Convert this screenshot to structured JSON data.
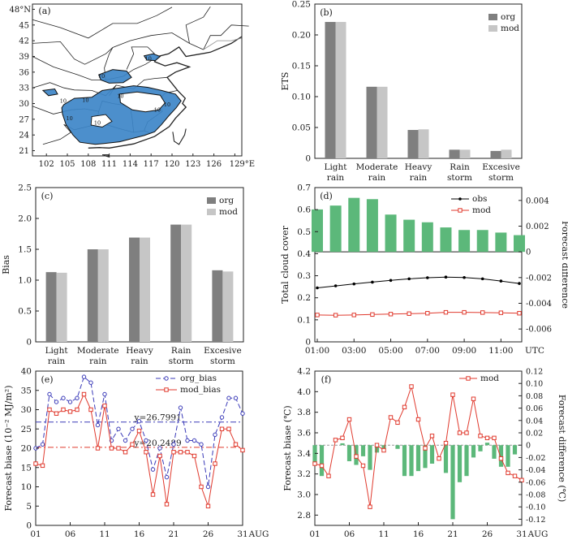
{
  "colors": {
    "org": "#7f7f7f",
    "mod": "#c6c6c6",
    "green": "#5cb87a",
    "obs": "#000000",
    "mod_line": "#e03a2e",
    "org_line": "#3a3ab8",
    "map_fill": "#3d86c8"
  },
  "chart_data": [
    {
      "panel": "(a)",
      "type": "map",
      "xticks": [
        "102",
        "105",
        "108",
        "111",
        "114",
        "117",
        "120",
        "123",
        "126",
        "129°E"
      ],
      "yticks": [
        "21",
        "24",
        "27",
        "30",
        "33",
        "36",
        "39",
        "42",
        "45",
        "48°N"
      ],
      "contour_labels": [
        "10",
        "10",
        "10",
        "10",
        "10",
        "10",
        "10",
        "10",
        "10"
      ]
    },
    {
      "panel": "(b)",
      "type": "bar",
      "ylabel": "ETS",
      "ylim": [
        0,
        0.25
      ],
      "yticks": [
        "0",
        "0.05",
        "0.10",
        "0.15",
        "0.20",
        "0.25"
      ],
      "categories": [
        "Light\nrain",
        "Moderate\nrain",
        "Heavy\nrain",
        "Rain\nstorm",
        "Excesive\nstorm"
      ],
      "series": [
        {
          "name": "org",
          "values": [
            0.221,
            0.116,
            0.046,
            0.014,
            0.012
          ]
        },
        {
          "name": "mod",
          "values": [
            0.221,
            0.116,
            0.047,
            0.014,
            0.014
          ]
        }
      ]
    },
    {
      "panel": "(c)",
      "type": "bar",
      "ylabel": "Bias",
      "ylim": [
        0,
        2.5
      ],
      "yticks": [
        "0",
        "0.5",
        "1.0",
        "1.5",
        "2.0",
        "2.5"
      ],
      "categories": [
        "Light\nrain",
        "Moderate\nrain",
        "Heavy\nrain",
        "Rain\nstorm",
        "Excesive\nstorm"
      ],
      "series": [
        {
          "name": "org",
          "values": [
            1.13,
            1.5,
            1.69,
            1.9,
            1.16
          ]
        },
        {
          "name": "mod",
          "values": [
            1.12,
            1.5,
            1.69,
            1.9,
            1.14
          ]
        }
      ]
    },
    {
      "panel": "(d)",
      "type": "line+bar",
      "ylabel_left": "Total cloud cover",
      "ylabel_right": "Forecast difference",
      "ylim_left": [
        0,
        0.7
      ],
      "yticks_left": [
        "0",
        "0.1",
        "0.2",
        "0.3",
        "0.4",
        "0.5",
        "0.6",
        "0.7"
      ],
      "ylim_right": [
        -0.007,
        0.005
      ],
      "yticks_right": [
        "-0.006",
        "-0.004",
        "-0.002",
        "0",
        "0.002",
        "0.004"
      ],
      "xtick_labels": [
        "01:00",
        "03:00",
        "05:00",
        "07:00",
        "09:00",
        "11:00",
        "UTC"
      ],
      "x": [
        1,
        2,
        3,
        4,
        5,
        6,
        7,
        8,
        9,
        10,
        11,
        12
      ],
      "series": [
        {
          "name": "obs",
          "values": [
            0.245,
            0.254,
            0.263,
            0.271,
            0.279,
            0.286,
            0.291,
            0.294,
            0.292,
            0.286,
            0.276,
            0.265
          ]
        },
        {
          "name": "mod",
          "values": [
            0.122,
            0.121,
            0.122,
            0.124,
            0.126,
            0.128,
            0.13,
            0.134,
            0.134,
            0.133,
            0.132,
            0.13
          ]
        }
      ],
      "bars": {
        "name": "difference",
        "values": [
          0.0033,
          0.0036,
          0.0042,
          0.0041,
          0.0029,
          0.0025,
          0.0023,
          0.0019,
          0.0017,
          0.0017,
          0.0015,
          0.0013
        ]
      }
    },
    {
      "panel": "(e)",
      "type": "line",
      "ylabel": "Forecast biase (10⁻² MJ/m²)",
      "ylim": [
        0,
        40
      ],
      "yticks": [
        "0",
        "5",
        "10",
        "15",
        "20",
        "25",
        "30",
        "35",
        "40"
      ],
      "xtick_labels": [
        "01",
        "06",
        "11",
        "16",
        "21",
        "26",
        "31",
        "AUG"
      ],
      "x": [
        1,
        2,
        3,
        4,
        5,
        6,
        7,
        8,
        9,
        10,
        11,
        12,
        13,
        14,
        15,
        16,
        17,
        18,
        19,
        20,
        21,
        22,
        23,
        24,
        25,
        26,
        27,
        28,
        29,
        30,
        31
      ],
      "series": [
        {
          "name": "org_bias",
          "values": [
            20,
            21,
            34,
            32,
            33,
            32,
            33,
            38.5,
            37,
            26,
            34,
            22,
            25,
            22,
            25,
            27,
            22,
            14.5,
            20,
            12.5,
            21,
            30.5,
            22,
            22,
            21,
            10,
            23.5,
            28,
            33,
            33,
            29
          ]
        },
        {
          "name": "mod_bias",
          "values": [
            16,
            15.5,
            30,
            29,
            30,
            29.5,
            30,
            34,
            30,
            20,
            31,
            20,
            20,
            19,
            21,
            24.5,
            19,
            8,
            18,
            5.5,
            19,
            19,
            19,
            18,
            10,
            5,
            16,
            25,
            25,
            21,
            19.5
          ]
        }
      ],
      "reference_lines": [
        {
          "label": "y=26.7991",
          "value": 26.7991
        },
        {
          "label": "y=20.2489",
          "value": 20.2489
        }
      ]
    },
    {
      "panel": "(f)",
      "type": "line+bar",
      "ylabel_left": "Forecast biase (℃)",
      "ylabel_right": "Forecast difference (℃)",
      "ylim_left": [
        2.7,
        4.2
      ],
      "yticks_left": [
        "2.8",
        "3.0",
        "3.2",
        "3.4",
        "3.6",
        "3.8",
        "4.0",
        "4.2"
      ],
      "ylim_right": [
        -0.13,
        0.12
      ],
      "yticks_right": [
        "-0.12",
        "-0.10",
        "-0.08",
        "-0.06",
        "-0.04",
        "-0.02",
        "0",
        "0.02",
        "0.04",
        "0.06",
        "0.08",
        "0.10",
        "0.12"
      ],
      "xtick_labels": [
        "01",
        "06",
        "11",
        "16",
        "21",
        "26",
        "31",
        "AUG"
      ],
      "x": [
        1,
        2,
        3,
        4,
        5,
        6,
        7,
        8,
        9,
        10,
        11,
        12,
        13,
        14,
        15,
        16,
        17,
        18,
        19,
        20,
        21,
        22,
        23,
        24,
        25,
        26,
        27,
        28,
        29,
        30,
        31
      ],
      "series": [
        {
          "name": "mod",
          "values": [
            3.3,
            3.28,
            3.18,
            3.53,
            3.55,
            3.73,
            3.37,
            3.28,
            2.88,
            3.48,
            3.43,
            3.75,
            3.7,
            3.85,
            4.05,
            3.73,
            3.45,
            3.57,
            3.35,
            3.5,
            3.97,
            3.6,
            3.6,
            3.93,
            3.57,
            3.55,
            3.55,
            3.35,
            3.21,
            3.18,
            3.14
          ]
        }
      ],
      "bars": {
        "name": "difference",
        "values": [
          -0.03,
          -0.05,
          0,
          0,
          0.003,
          -0.026,
          -0.032,
          -0.018,
          -0.04,
          -0.012,
          -0.008,
          0,
          -0.006,
          -0.05,
          -0.05,
          -0.042,
          -0.037,
          -0.03,
          0,
          -0.045,
          -0.12,
          -0.06,
          -0.05,
          -0.02,
          -0.01,
          0.004,
          -0.022,
          -0.035,
          -0.035,
          -0.015,
          0
        ]
      }
    }
  ]
}
